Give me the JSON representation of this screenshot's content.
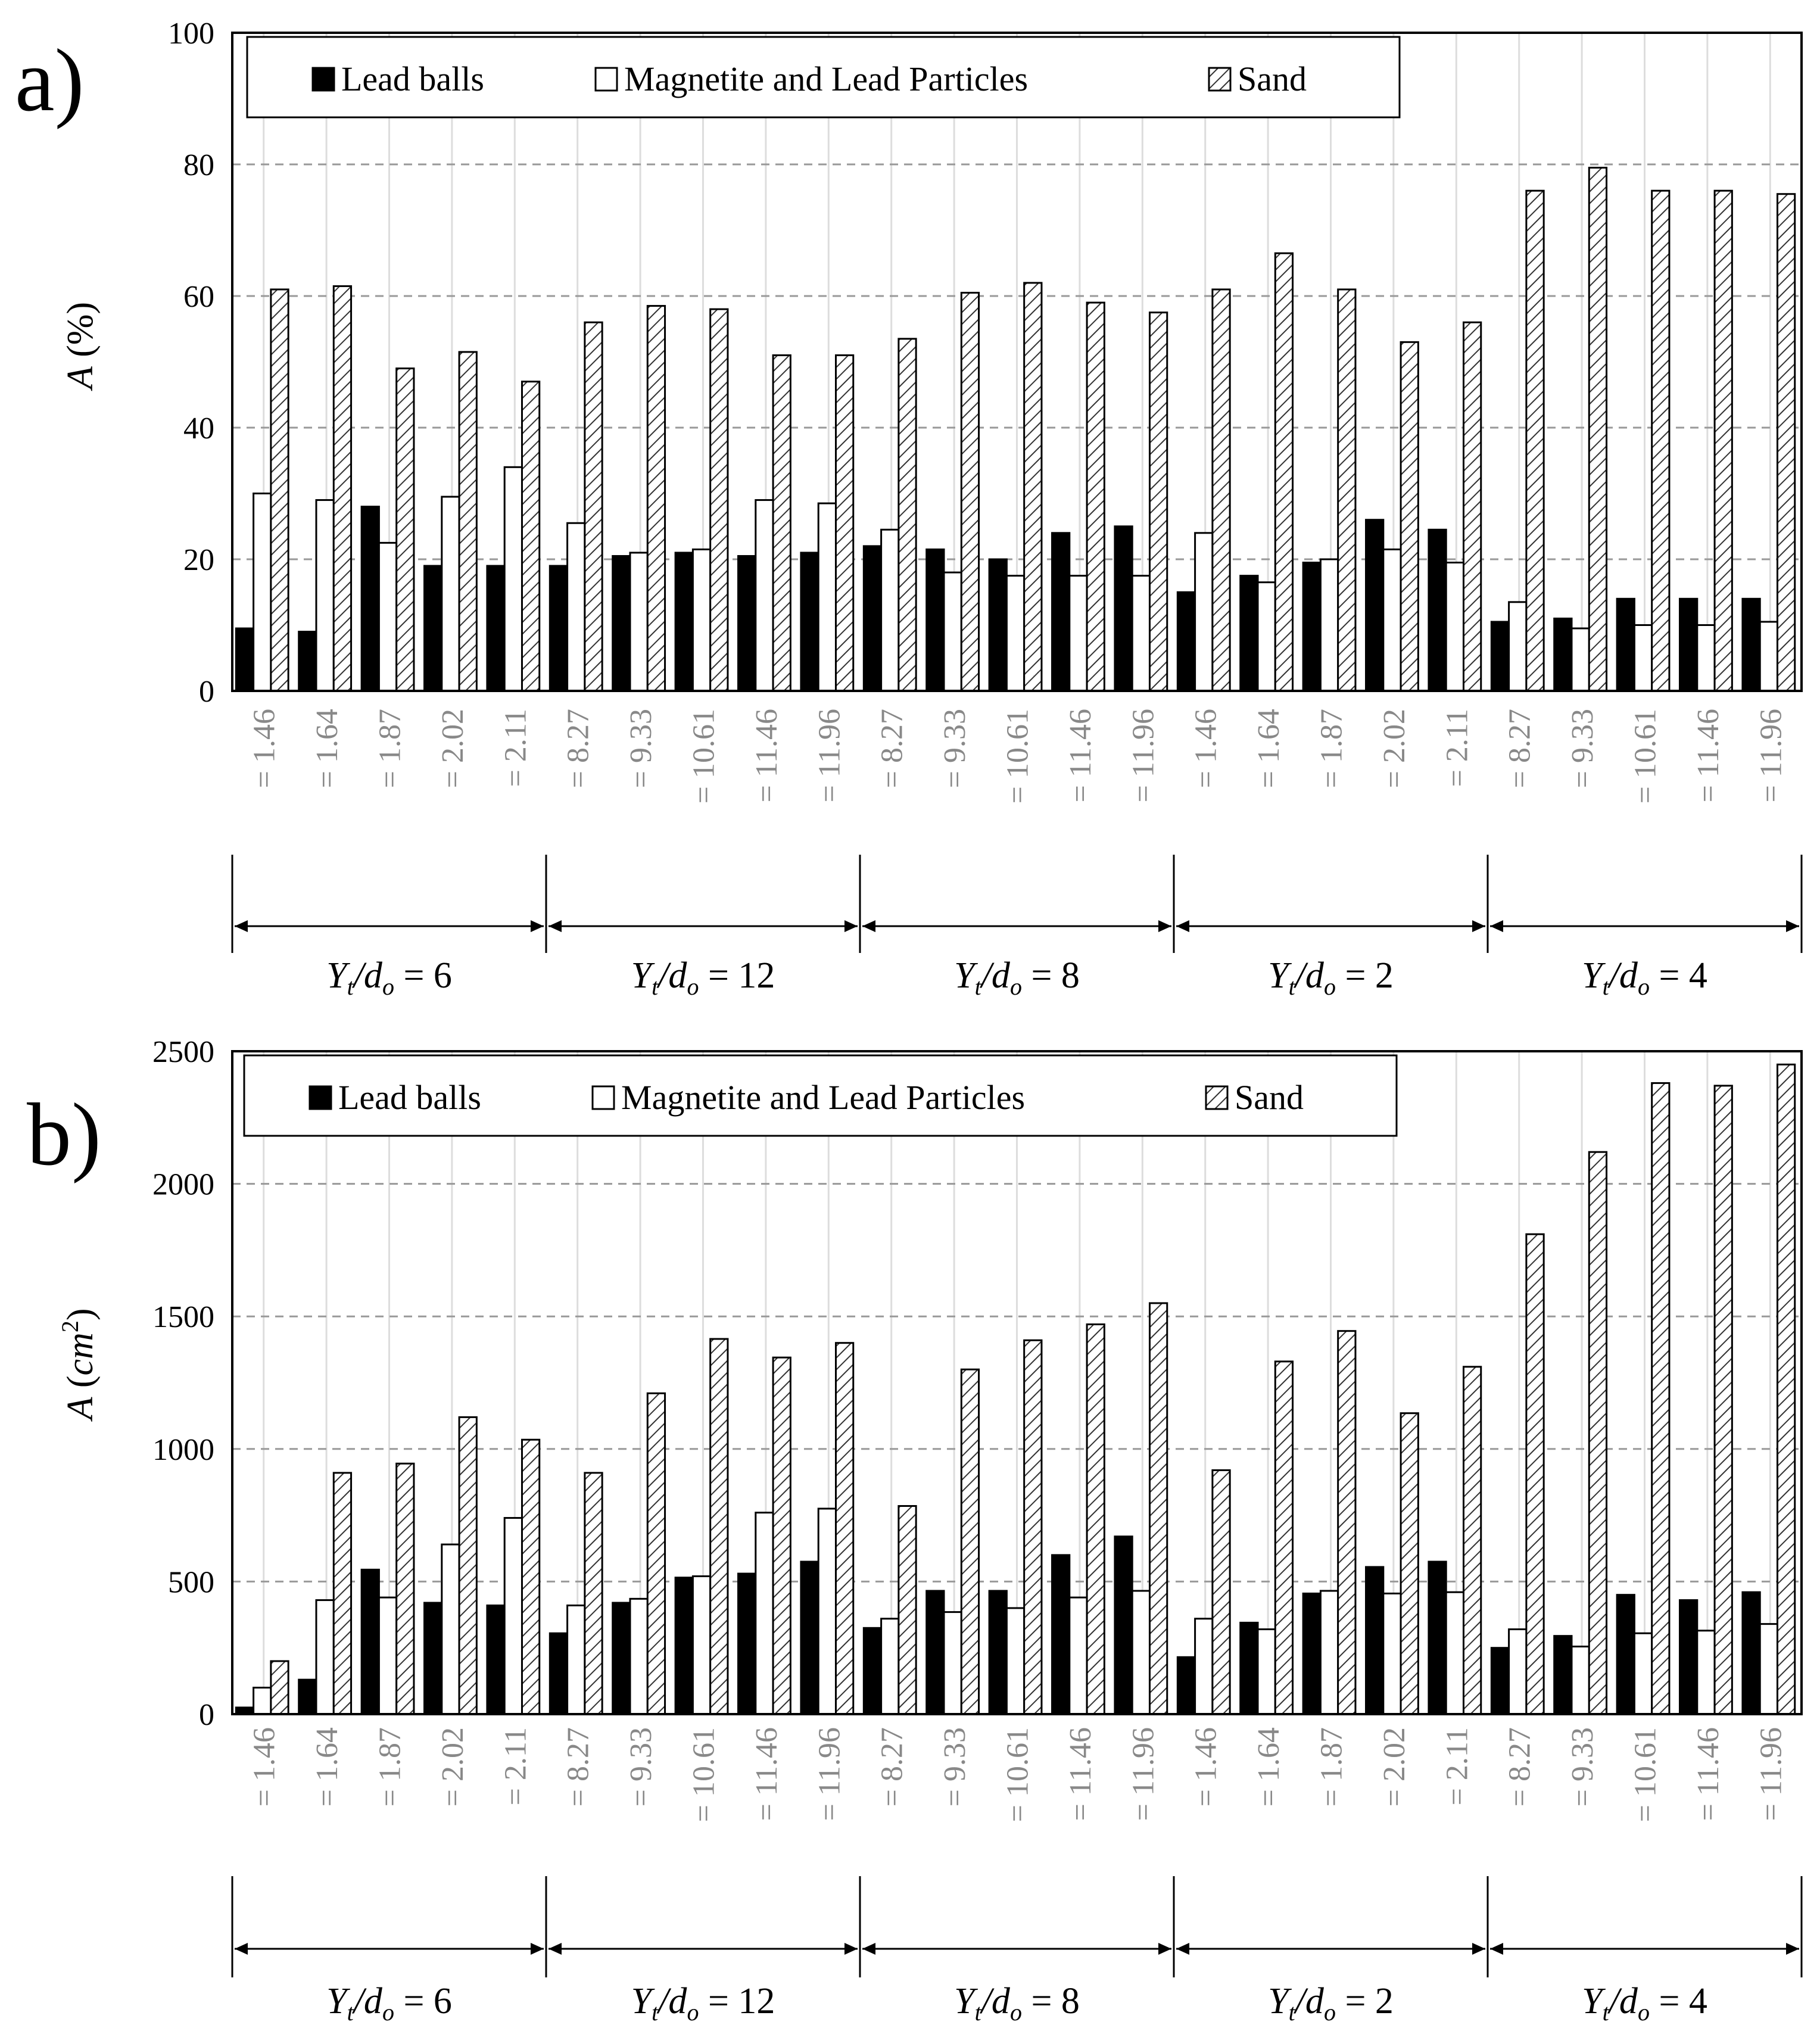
{
  "figure": {
    "legend": {
      "lead": "Lead balls",
      "magnetite": "Magnetite and Lead Particles",
      "sand": "Sand"
    },
    "colors": {
      "lead": "#000000",
      "magnetite": "#ffffff",
      "sand_hatch": "#333333",
      "grid": "#999999",
      "tick_text": "#888888"
    },
    "group_label": {
      "prefix_main": "Y",
      "prefix_sub": "t",
      "slash": "/d",
      "slash_sub": "o"
    }
  },
  "chart_data": [
    {
      "type": "bar",
      "panel_label": "a)",
      "title": "",
      "ylabel_italic": "A",
      "ylabel_rest": "(%)",
      "ylim": [
        0,
        100
      ],
      "yticks": [
        "0",
        "20",
        "40",
        "60",
        "80",
        "100"
      ],
      "grid": true,
      "legend_position": "top-left",
      "categories": [
        "= 1.46",
        "= 1.64",
        "= 1.87",
        "= 2.02",
        "= 2.11",
        "= 8.27",
        "= 9.33",
        "= 10.61",
        "= 11.46",
        "= 11.96",
        "= 8.27",
        "= 9.33",
        "= 10.61",
        "= 11.46",
        "= 11.96",
        "= 1.46",
        "= 1.64",
        "= 1.87",
        "= 2.02",
        "= 2.11",
        "= 8.27",
        "= 9.33",
        "= 10.61",
        "= 11.46",
        "= 11.96"
      ],
      "groups": [
        {
          "label": "= 6",
          "start": 0,
          "count": 5
        },
        {
          "label": "= 12",
          "start": 5,
          "count": 5
        },
        {
          "label": "= 8",
          "start": 10,
          "count": 5
        },
        {
          "label": "= 2",
          "start": 15,
          "count": 5
        },
        {
          "label": "= 4",
          "start": 20,
          "count": 5
        }
      ],
      "series": [
        {
          "name": "Lead balls",
          "values": [
            9.5,
            9,
            28,
            19,
            19,
            19,
            20.5,
            21,
            20.5,
            21,
            22,
            21.5,
            20,
            24,
            25,
            15,
            17.5,
            19.5,
            26,
            24.5,
            10.5,
            11,
            14,
            14,
            14
          ]
        },
        {
          "name": "Magnetite and Lead Particles",
          "values": [
            30,
            29,
            22.5,
            29.5,
            34,
            25.5,
            21,
            21.5,
            29,
            28.5,
            24.5,
            18,
            17.5,
            17.5,
            17.5,
            24,
            16.5,
            20,
            21.5,
            19.5,
            13.5,
            9.5,
            10,
            10,
            10.5
          ]
        },
        {
          "name": "Sand",
          "values": [
            61,
            61.5,
            49,
            51.5,
            47,
            56,
            58.5,
            58,
            51,
            51,
            53.5,
            60.5,
            62,
            59,
            57.5,
            61,
            66.5,
            61,
            53,
            56,
            76,
            79.5,
            76,
            76,
            75.5
          ]
        }
      ]
    },
    {
      "type": "bar",
      "panel_label": "b)",
      "title": "",
      "ylabel_italic": "A",
      "ylabel_rest": "cm",
      "ylabel_sup": "2",
      "ylim": [
        0,
        2500
      ],
      "yticks": [
        "0",
        "500",
        "1000",
        "1500",
        "2000",
        "2500"
      ],
      "grid": true,
      "legend_position": "top-left",
      "categories": [
        "= 1.46",
        "= 1.64",
        "= 1.87",
        "= 2.02",
        "= 2.11",
        "= 8.27",
        "= 9.33",
        "= 10.61",
        "= 11.46",
        "= 11.96",
        "= 8.27",
        "= 9.33",
        "= 10.61",
        "= 11.46",
        "= 11.96",
        "= 1.46",
        "= 1.64",
        "= 1.87",
        "= 2.02",
        "= 2.11",
        "= 8.27",
        "= 9.33",
        "= 10.61",
        "= 11.46",
        "= 11.96"
      ],
      "groups": [
        {
          "label": "= 6",
          "start": 0,
          "count": 5
        },
        {
          "label": "= 12",
          "start": 5,
          "count": 5
        },
        {
          "label": "= 8",
          "start": 10,
          "count": 5
        },
        {
          "label": "= 2",
          "start": 15,
          "count": 5
        },
        {
          "label": "= 4",
          "start": 20,
          "count": 5
        }
      ],
      "series": [
        {
          "name": "Lead balls",
          "values": [
            25,
            130,
            545,
            420,
            410,
            305,
            420,
            515,
            530,
            575,
            325,
            465,
            465,
            600,
            670,
            215,
            345,
            455,
            555,
            575,
            250,
            295,
            450,
            430,
            460
          ]
        },
        {
          "name": "Magnetite and Lead Particles",
          "values": [
            100,
            430,
            440,
            640,
            740,
            410,
            435,
            520,
            760,
            775,
            360,
            385,
            400,
            440,
            465,
            360,
            320,
            465,
            455,
            460,
            320,
            255,
            305,
            315,
            340
          ]
        },
        {
          "name": "Sand",
          "values": [
            200,
            910,
            945,
            1120,
            1035,
            910,
            1210,
            1415,
            1345,
            1400,
            785,
            1300,
            1410,
            1470,
            1550,
            920,
            1330,
            1445,
            1135,
            1310,
            1810,
            2120,
            2380,
            2370,
            2450
          ]
        }
      ]
    }
  ]
}
